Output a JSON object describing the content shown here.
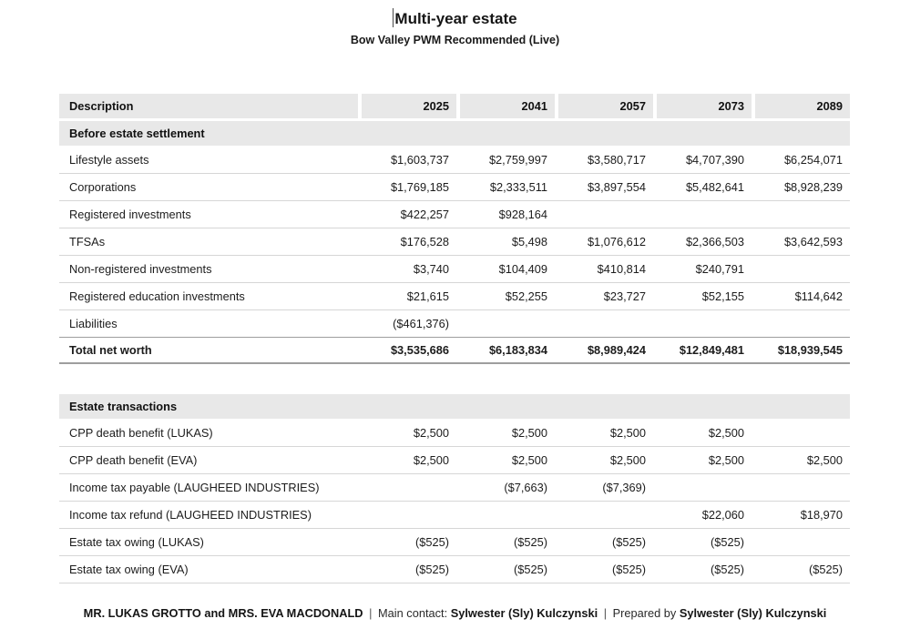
{
  "page": {
    "title": "Multi-year estate",
    "subtitle": "Bow Valley PWM Recommended (Live)"
  },
  "columns": [
    "Description",
    "2025",
    "2041",
    "2057",
    "2073",
    "2089"
  ],
  "tables": [
    {
      "section": "Before estate settlement",
      "rows": [
        {
          "label": "Lifestyle assets",
          "values": [
            "$1,603,737",
            "$2,759,997",
            "$3,580,717",
            "$4,707,390",
            "$6,254,071"
          ]
        },
        {
          "label": "Corporations",
          "values": [
            "$1,769,185",
            "$2,333,511",
            "$3,897,554",
            "$5,482,641",
            "$8,928,239"
          ]
        },
        {
          "label": "Registered investments",
          "values": [
            "$422,257",
            "$928,164",
            "",
            "",
            ""
          ]
        },
        {
          "label": "TFSAs",
          "values": [
            "$176,528",
            "$5,498",
            "$1,076,612",
            "$2,366,503",
            "$3,642,593"
          ]
        },
        {
          "label": "Non-registered investments",
          "values": [
            "$3,740",
            "$104,409",
            "$410,814",
            "$240,791",
            ""
          ]
        },
        {
          "label": "Registered education investments",
          "values": [
            "$21,615",
            "$52,255",
            "$23,727",
            "$52,155",
            "$114,642"
          ]
        },
        {
          "label": "Liabilities",
          "values": [
            "($461,376)",
            "",
            "",
            "",
            ""
          ]
        },
        {
          "label": "Total net worth",
          "values": [
            "$3,535,686",
            "$6,183,834",
            "$8,989,424",
            "$12,849,481",
            "$18,939,545"
          ]
        }
      ]
    },
    {
      "section": "Estate transactions",
      "rows": [
        {
          "label": "CPP death benefit (LUKAS)",
          "values": [
            "$2,500",
            "$2,500",
            "$2,500",
            "$2,500",
            ""
          ]
        },
        {
          "label": "CPP death benefit (EVA)",
          "values": [
            "$2,500",
            "$2,500",
            "$2,500",
            "$2,500",
            "$2,500"
          ]
        },
        {
          "label": "Income tax payable (LAUGHEED INDUSTRIES)",
          "values": [
            "",
            "($7,663)",
            "($7,369)",
            "",
            ""
          ]
        },
        {
          "label": "Income tax refund (LAUGHEED INDUSTRIES)",
          "values": [
            "",
            "",
            "",
            "$22,060",
            "$18,970"
          ]
        },
        {
          "label": "Estate tax owing (LUKAS)",
          "values": [
            "($525)",
            "($525)",
            "($525)",
            "($525)",
            ""
          ]
        },
        {
          "label": "Estate tax owing (EVA)",
          "values": [
            "($525)",
            "($525)",
            "($525)",
            "($525)",
            "($525)"
          ]
        }
      ]
    }
  ],
  "footer": {
    "clients": "MR. LUKAS GROTTO and MRS. EVA MACDONALD",
    "separator": "|",
    "main_contact_label": "Main contact:",
    "main_contact_name": "Sylwester (Sly) Kulczynski",
    "prepared_by_label": "Prepared by",
    "prepared_by_name": "Sylwester (Sly) Kulczynski"
  }
}
